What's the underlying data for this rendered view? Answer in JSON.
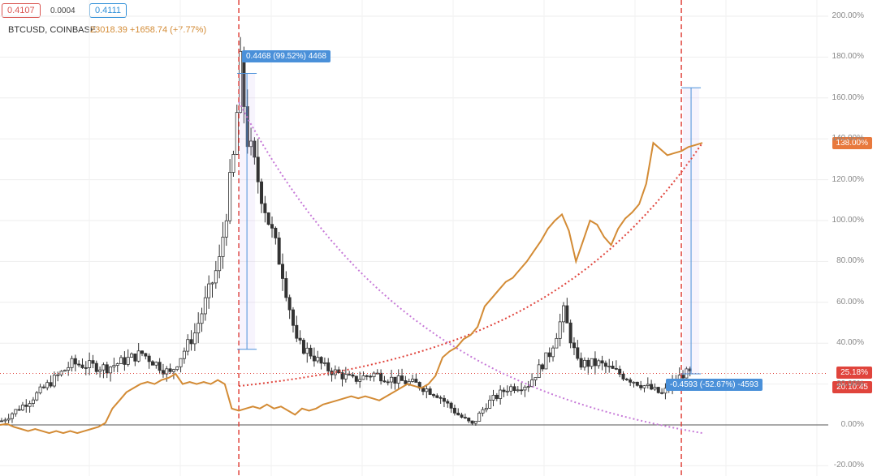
{
  "header": {
    "bid": "0.4107",
    "spread": "0.0004",
    "ask": "0.4111",
    "symbol": "BTCUSD, COINBASE",
    "symbol_price": "23018.39 +1658.74 (+7.77%)"
  },
  "measurements": {
    "top": "0.4468 (99.52%) 4468",
    "bottom": "-0.4593 (-52.67%) -4593"
  },
  "price_labels": {
    "btc_last": "138.00%",
    "main_last": "25.18%",
    "countdown": "20:10:45"
  },
  "colors": {
    "candle": "#333333",
    "btc_line": "#d38b35",
    "curve_down": "#c77ad8",
    "curve_up": "#e0443c",
    "vline": "#e0443c",
    "measure": "#4a90d9"
  },
  "chart_data": {
    "type": "line",
    "y_unit": "%",
    "ylim": [
      -20,
      200
    ],
    "y_ticks": [
      "200.00%",
      "180.00%",
      "160.00%",
      "140.00%",
      "120.00%",
      "100.00%",
      "80.00%",
      "60.00%",
      "40.00%",
      "20.00%",
      "0.00%",
      "-20.00%"
    ],
    "grid": true,
    "series": [
      {
        "name": "BTCUSD, COINBASE",
        "style": "line",
        "x": [
          0,
          2,
          4,
          6,
          8,
          10,
          12,
          14,
          16,
          18,
          20,
          22,
          24,
          26,
          28,
          30,
          32,
          34,
          36,
          38,
          40,
          42,
          44,
          46,
          48,
          50,
          52,
          54,
          56,
          58,
          60,
          62,
          64,
          66,
          68,
          70,
          72,
          74,
          76,
          78,
          80,
          82,
          84,
          86,
          88,
          90,
          92,
          94,
          96,
          98,
          100,
          102,
          104,
          106,
          108,
          110,
          112,
          114,
          116,
          118,
          120,
          122,
          124,
          126,
          128,
          130,
          132,
          134,
          136,
          138,
          140,
          142,
          144,
          146,
          148,
          150,
          152,
          154,
          156,
          158,
          160,
          162,
          164,
          166,
          168,
          170,
          172,
          174,
          176,
          178,
          180,
          182,
          184,
          186,
          188,
          190,
          192,
          194,
          196,
          198,
          200
        ],
        "y": [
          0,
          0.5,
          -1,
          -2,
          -3,
          -2,
          -3,
          -4,
          -3,
          -4,
          -3,
          -4,
          -3,
          -2,
          -1,
          1,
          8,
          12,
          16,
          18,
          20,
          21,
          20,
          22,
          23,
          25,
          20,
          21,
          20,
          21,
          20,
          22,
          20,
          8,
          7,
          8,
          9,
          8,
          10,
          8,
          9,
          7,
          5,
          8,
          7,
          8,
          10,
          11,
          12,
          13,
          14,
          13,
          14,
          13,
          12,
          14,
          16,
          18,
          20,
          19,
          18,
          20,
          24,
          33,
          36,
          38,
          42,
          44,
          48,
          58,
          62,
          66,
          70,
          72,
          76,
          80,
          85,
          90,
          96,
          100,
          103,
          95,
          80,
          90,
          100,
          98,
          92,
          88,
          96,
          101,
          104,
          108,
          118,
          138,
          135,
          132,
          133,
          134,
          136,
          137,
          138
        ]
      }
    ],
    "curves": [
      {
        "name": "",
        "x": [
          68,
          200
        ],
        "y": [
          158,
          -4
        ]
      },
      {
        "name": "",
        "x": [
          68,
          200
        ],
        "y": [
          19,
          138
        ]
      }
    ],
    "ranges": [
      {
        "x": 68,
        "from": 37,
        "to": 172
      },
      {
        "x": 194,
        "from": 165,
        "to": 25
      }
    ],
    "vertical_lines": [
      68,
      194
    ],
    "horizontal_line": 25.18
  }
}
